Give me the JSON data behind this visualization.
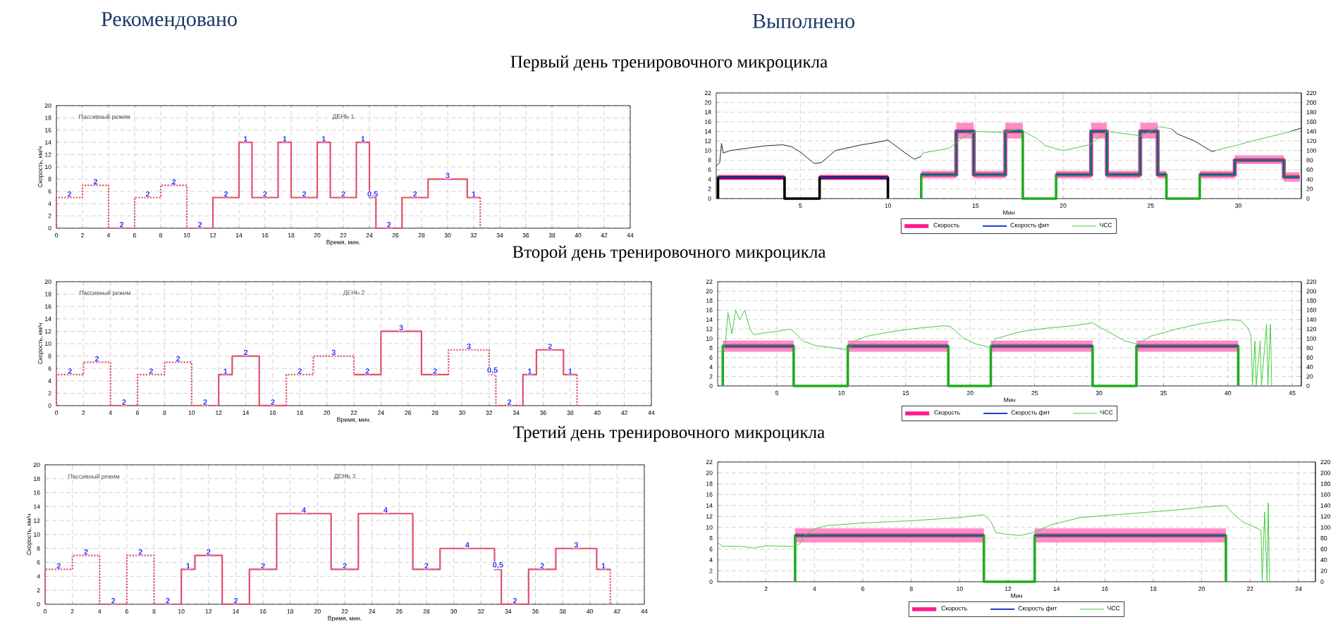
{
  "chart_data": [
    {
      "type": "line",
      "title": "Первый день тренировочного микроцикла",
      "subtitle": "Рекомендовано",
      "xlabel": "Время, мин.",
      "ylabel": "Скорость, км/ч",
      "xlim": [
        0,
        44
      ],
      "ylim": [
        0,
        20
      ],
      "xticks": [
        0,
        2,
        4,
        6,
        8,
        10,
        12,
        14,
        16,
        18,
        20,
        22,
        24,
        26,
        28,
        30,
        32,
        34,
        36,
        38,
        40,
        42,
        44
      ],
      "yticks": [
        0,
        2,
        4,
        6,
        8,
        10,
        12,
        14,
        16,
        18,
        20
      ],
      "grid": true,
      "annotations": [
        "Пассивный режим",
        "ДЕНЬ 1",
        {
          "text": "2",
          "x": 1,
          "y": 5
        },
        {
          "text": "2",
          "x": 3,
          "y": 7
        },
        {
          "text": "2",
          "x": 5,
          "y": 0
        },
        {
          "text": "2",
          "x": 7,
          "y": 5
        },
        {
          "text": "2",
          "x": 9,
          "y": 7
        },
        {
          "text": "2",
          "x": 11,
          "y": 0
        },
        {
          "text": "2",
          "x": 13,
          "y": 5
        },
        {
          "text": "1",
          "x": 14.5,
          "y": 14
        },
        {
          "text": "2",
          "x": 16,
          "y": 5
        },
        {
          "text": "1",
          "x": 17.5,
          "y": 14
        },
        {
          "text": "2",
          "x": 19,
          "y": 5
        },
        {
          "text": "1",
          "x": 20.5,
          "y": 14
        },
        {
          "text": "2",
          "x": 22,
          "y": 5
        },
        {
          "text": "1",
          "x": 23.5,
          "y": 14
        },
        {
          "text": "0.5",
          "x": 24.25,
          "y": 5
        },
        {
          "text": "2",
          "x": 25.5,
          "y": 0
        },
        {
          "text": "2",
          "x": 27.5,
          "y": 5
        },
        {
          "text": "3",
          "x": 30,
          "y": 8
        },
        {
          "text": "1",
          "x": 32,
          "y": 5
        }
      ],
      "series": [
        {
          "color": "#e0506a",
          "line_style": "dotted",
          "x": [
            0,
            0,
            2,
            2,
            4,
            4,
            6,
            6,
            8,
            8,
            10,
            10,
            12
          ],
          "values": [
            0,
            5,
            5,
            7,
            7,
            0,
            0,
            5,
            5,
            7,
            7,
            0,
            0
          ]
        },
        {
          "color": "#e0506a",
          "line_style": "solid",
          "x": [
            12,
            12,
            14,
            14,
            15,
            15,
            17,
            17,
            18,
            18,
            20,
            20,
            21,
            21,
            23,
            23,
            24,
            24,
            24.5,
            24.5,
            26.5,
            26.5,
            28.5,
            28.5,
            31.5,
            31.5,
            32.5
          ],
          "values": [
            0,
            5,
            5,
            14,
            14,
            5,
            5,
            14,
            14,
            5,
            5,
            14,
            14,
            5,
            5,
            14,
            14,
            5,
            5,
            0,
            0,
            5,
            5,
            8,
            8,
            5,
            5
          ]
        },
        {
          "color": "#e0506a",
          "line_style": "dotted",
          "x": [
            32.5,
            32.5
          ],
          "values": [
            5,
            0
          ]
        }
      ]
    },
    {
      "type": "line",
      "subtitle": "Выполнено",
      "xlabel": "Мин",
      "xlim": [
        0.2,
        33.6
      ],
      "ylim": [
        0,
        22
      ],
      "y2lim": [
        0,
        220
      ],
      "xticks": [
        5,
        10,
        15,
        20,
        25,
        30
      ],
      "yticks": [
        0,
        2,
        4,
        6,
        8,
        10,
        12,
        14,
        16,
        18,
        20,
        22
      ],
      "y2ticks": [
        0,
        20,
        40,
        60,
        80,
        100,
        120,
        140,
        160,
        180,
        200,
        220
      ],
      "grid": true,
      "legend": "bottom",
      "series": [
        {
          "name": "Скорость",
          "color": "#ff1a8c",
          "x": [
            0.3,
            4.1
          ],
          "values": [
            4.4,
            4.4
          ],
          "lower": [
            3.8,
            3.8
          ],
          "upper": [
            5,
            5
          ]
        },
        {
          "color": "#ff1a8c",
          "x": [
            6.1,
            10
          ],
          "values": [
            4.4,
            4.4
          ],
          "lower": [
            3.8,
            3.8
          ],
          "upper": [
            5,
            5
          ]
        },
        {
          "color": "#ff1a8c",
          "x": [
            11.9,
            13.9,
            13.9,
            14.9,
            14.9,
            16.7,
            16.7,
            17.7
          ],
          "values": [
            5,
            5,
            14,
            14,
            5,
            5,
            14,
            14
          ],
          "lower": [
            4.2,
            4.2,
            12.5,
            12.5,
            4.2,
            4.2,
            12.5,
            12.5
          ],
          "upper": [
            5.8,
            5.8,
            15.8,
            15.8,
            5.8,
            5.8,
            15.8,
            15.8
          ]
        },
        {
          "color": "#ff1a8c",
          "x": [
            19.6,
            21.6,
            21.6,
            22.5,
            22.5,
            24.4,
            24.4,
            25.4,
            25.4,
            25.9
          ],
          "values": [
            5,
            5,
            14,
            14,
            5,
            5,
            14,
            14,
            5,
            5
          ],
          "lower": [
            4.2,
            4.2,
            12.5,
            12.5,
            4.2,
            4.2,
            12.5,
            12.5,
            4.2,
            4.2
          ],
          "upper": [
            5.8,
            5.8,
            15.8,
            15.8,
            5.8,
            5.8,
            15.8,
            15.8,
            5.8,
            5.8
          ]
        },
        {
          "color": "#ff1a8c",
          "x": [
            27.8,
            29.8,
            29.8,
            32.6,
            32.6,
            33.5
          ],
          "values": [
            5,
            5,
            8,
            8,
            4.5,
            4.5
          ],
          "lower": [
            4.2,
            4.2,
            7.2,
            7.2,
            3.5,
            3.5
          ],
          "upper": [
            5.8,
            5.8,
            9,
            9,
            5.5,
            5.5
          ]
        },
        {
          "color": "#000000",
          "x": [
            0.3,
            0.3,
            4.1,
            4.1,
            6.1,
            6.1,
            10,
            10
          ],
          "values": [
            0,
            4.4,
            4.4,
            0,
            0,
            4.4,
            4.4,
            0
          ]
        },
        {
          "color": "#22aa22",
          "x": [
            11.9,
            11.9,
            13.9,
            13.9,
            14.9,
            14.9,
            16.7,
            16.7,
            17.7,
            17.7,
            19.6,
            19.6,
            21.6,
            21.6,
            22.5,
            22.5,
            24.4,
            24.4,
            25.4,
            25.4,
            25.9,
            25.9,
            27.8,
            27.8,
            29.8,
            29.8,
            32.6,
            32.6,
            33.5
          ],
          "values": [
            0,
            5,
            5,
            14,
            14,
            5,
            5,
            14,
            14,
            0,
            0,
            5,
            5,
            14,
            14,
            5,
            5,
            14,
            14,
            5,
            5,
            0,
            0,
            5,
            5,
            8,
            8,
            4.5,
            4.5
          ]
        },
        {
          "name": "Скорость фит",
          "color": "#2040d0",
          "x": [
            0.3,
            4.1
          ],
          "values": [
            4.4,
            4.4
          ]
        },
        {
          "color": "#2040d0",
          "x": [
            6.1,
            10
          ],
          "values": [
            4.4,
            4.4
          ]
        },
        {
          "color": "#2040d0",
          "x": [
            11.9,
            13.9,
            13.9,
            14.9,
            14.9,
            16.7,
            16.7,
            17.7
          ],
          "values": [
            5,
            5,
            14,
            14,
            5,
            5,
            14,
            14
          ]
        },
        {
          "color": "#2040d0",
          "x": [
            19.6,
            21.6,
            21.6,
            22.5,
            22.5,
            24.4,
            24.4,
            25.4,
            25.4,
            25.9
          ],
          "values": [
            5,
            5,
            14,
            14,
            5,
            5,
            14,
            14,
            5,
            5
          ]
        },
        {
          "color": "#2040d0",
          "x": [
            27.8,
            29.8,
            29.8,
            32.6,
            32.6,
            33.5
          ],
          "values": [
            5,
            5,
            8,
            8,
            4.5,
            4.5
          ]
        },
        {
          "name": "ЧСС",
          "color": "#44cc44",
          "axis": "y2",
          "x": [
            11.9,
            12,
            13.5,
            14.2,
            15,
            16.5,
            17.5,
            18.5,
            19,
            20,
            21.5,
            22.5,
            24,
            24.4,
            25.5,
            26.2
          ],
          "values": [
            88,
            95,
            105,
            125,
            140,
            138,
            145,
            125,
            110,
            100,
            112,
            140,
            133,
            130,
            150,
            145
          ]
        },
        {
          "color": "#44cc44",
          "axis": "y2",
          "x": [
            28.7,
            30,
            31,
            32.5,
            33
          ],
          "values": [
            100,
            112,
            122,
            135,
            140
          ]
        },
        {
          "color": "#222222",
          "axis": "y2",
          "x": [
            0.2,
            0.4,
            0.5,
            0.6,
            1,
            2,
            3,
            4,
            4.5,
            5,
            5.8,
            6.2,
            7,
            8.5,
            9.5,
            10,
            10.8,
            11.5,
            11.9
          ],
          "values": [
            68,
            75,
            115,
            95,
            100,
            105,
            110,
            112,
            108,
            97,
            73,
            75,
            100,
            112,
            118,
            122,
            100,
            82,
            88
          ]
        },
        {
          "color": "#222222",
          "axis": "y2",
          "x": [
            26.2,
            26.5,
            27.5,
            28.5,
            28.7
          ],
          "values": [
            145,
            135,
            120,
            98,
            100
          ]
        },
        {
          "color": "#222222",
          "axis": "y2",
          "x": [
            33,
            33.6
          ],
          "values": [
            140,
            147
          ]
        }
      ]
    },
    {
      "type": "line",
      "title": "Второй день тренировочного микроцикла",
      "xlabel": "Время, мин.",
      "ylabel": "Скорость, км/ч",
      "xlim": [
        0,
        44
      ],
      "ylim": [
        0,
        20
      ],
      "xticks": [
        0,
        2,
        4,
        6,
        8,
        10,
        12,
        14,
        16,
        18,
        20,
        22,
        24,
        26,
        28,
        30,
        32,
        34,
        36,
        38,
        40,
        42,
        44
      ],
      "yticks": [
        0,
        2,
        4,
        6,
        8,
        10,
        12,
        14,
        16,
        18,
        20
      ],
      "grid": true,
      "annotations": [
        "Пассивный режим",
        "ДЕНЬ 2",
        {
          "text": "2",
          "x": 1,
          "y": 5
        },
        {
          "text": "2",
          "x": 3,
          "y": 7
        },
        {
          "text": "2",
          "x": 5,
          "y": 0
        },
        {
          "text": "2",
          "x": 7,
          "y": 5
        },
        {
          "text": "2",
          "x": 9,
          "y": 7
        },
        {
          "text": "2",
          "x": 11,
          "y": 0
        },
        {
          "text": "1",
          "x": 12.5,
          "y": 5
        },
        {
          "text": "2",
          "x": 14,
          "y": 8
        },
        {
          "text": "2",
          "x": 16,
          "y": 0
        },
        {
          "text": "2",
          "x": 18,
          "y": 5
        },
        {
          "text": "3",
          "x": 20.5,
          "y": 8
        },
        {
          "text": "2",
          "x": 23,
          "y": 5
        },
        {
          "text": "3",
          "x": 25.5,
          "y": 12
        },
        {
          "text": "2",
          "x": 28,
          "y": 5
        },
        {
          "text": "3",
          "x": 30.5,
          "y": 9
        },
        {
          "text": "0,5",
          "x": 32.25,
          "y": 5
        },
        {
          "text": "2",
          "x": 33.5,
          "y": 0
        },
        {
          "text": "1",
          "x": 35,
          "y": 5
        },
        {
          "text": "2",
          "x": 36.5,
          "y": 9
        },
        {
          "text": "1",
          "x": 38,
          "y": 5
        }
      ],
      "series": [
        {
          "color": "#e0506a",
          "line_style": "dotted",
          "x": [
            0,
            0,
            2,
            2,
            4,
            4,
            6,
            6,
            8,
            8,
            10,
            10,
            12
          ],
          "values": [
            0,
            5,
            5,
            7,
            7,
            0,
            0,
            5,
            5,
            7,
            7,
            0,
            0
          ]
        },
        {
          "color": "#e0506a",
          "line_style": "solid",
          "x": [
            12,
            12,
            13,
            13,
            15,
            15,
            17
          ],
          "values": [
            0,
            5,
            5,
            8,
            8,
            0,
            0
          ]
        },
        {
          "color": "#e0506a",
          "line_style": "dotted",
          "x": [
            17,
            17,
            19,
            19,
            22,
            22
          ],
          "values": [
            0,
            5,
            5,
            8,
            8,
            5
          ]
        },
        {
          "color": "#e0506a",
          "line_style": "solid",
          "x": [
            22,
            24,
            24,
            27,
            27,
            29
          ],
          "values": [
            5,
            5,
            12,
            12,
            5,
            5
          ]
        },
        {
          "color": "#e0506a",
          "line_style": "dotted",
          "x": [
            29,
            29,
            32,
            32,
            32.5,
            32.5,
            34.5
          ],
          "values": [
            5,
            9,
            9,
            5,
            5,
            0,
            0
          ]
        },
        {
          "color": "#e0506a",
          "line_style": "solid",
          "x": [
            34.5,
            34.5,
            35.5,
            35.5,
            37.5,
            37.5,
            38.5
          ],
          "values": [
            0,
            5,
            5,
            9,
            9,
            5,
            5
          ]
        },
        {
          "color": "#e0506a",
          "line_style": "dotted",
          "x": [
            38.5,
            38.5
          ],
          "values": [
            5,
            0
          ]
        }
      ]
    },
    {
      "type": "line",
      "xlabel": "Мин",
      "xlim": [
        0.4,
        45.7
      ],
      "ylim": [
        0,
        22
      ],
      "y2lim": [
        0,
        220
      ],
      "xticks": [
        5,
        10,
        15,
        20,
        25,
        30,
        35,
        40,
        45
      ],
      "yticks": [
        0,
        2,
        4,
        6,
        8,
        10,
        12,
        14,
        16,
        18,
        20,
        22
      ],
      "y2ticks": [
        0,
        20,
        40,
        60,
        80,
        100,
        120,
        140,
        160,
        180,
        200,
        220
      ],
      "grid": true,
      "legend": "bottom",
      "series": [
        {
          "name": "Скорость",
          "color": "#ff1a8c",
          "x": [
            0.8,
            6.3
          ],
          "values": [
            8.4,
            8.4
          ],
          "lower": [
            7.2,
            7.2
          ],
          "upper": [
            9.6,
            9.6
          ]
        },
        {
          "color": "#ff1a8c",
          "x": [
            10.5,
            18.3
          ],
          "values": [
            8.4,
            8.4
          ],
          "lower": [
            7.2,
            7.2
          ],
          "upper": [
            9.6,
            9.6
          ]
        },
        {
          "color": "#ff1a8c",
          "x": [
            21.6,
            29.5
          ],
          "values": [
            8.4,
            8.4
          ],
          "lower": [
            7.2,
            7.2
          ],
          "upper": [
            9.6,
            9.6
          ]
        },
        {
          "color": "#ff1a8c",
          "x": [
            32.9,
            40.8
          ],
          "values": [
            8.4,
            8.4
          ],
          "lower": [
            7.2,
            7.2
          ],
          "upper": [
            9.6,
            9.6
          ]
        },
        {
          "color": "#22aa22",
          "x": [
            0.8,
            0.8,
            6.3,
            6.3,
            10.5,
            10.5,
            18.3,
            18.3,
            21.6,
            21.6,
            29.5,
            29.5,
            32.9,
            32.9,
            40.8,
            40.8
          ],
          "values": [
            0,
            8.4,
            8.4,
            0,
            0,
            8.4,
            8.4,
            0,
            0,
            8.4,
            8.4,
            0,
            0,
            8.4,
            8.4,
            0
          ]
        },
        {
          "name": "Скорость фит",
          "color": "#2040d0",
          "x": [
            0.8,
            6.3
          ],
          "values": [
            8.4,
            8.4
          ]
        },
        {
          "color": "#2040d0",
          "x": [
            10.5,
            18.3
          ],
          "values": [
            8.4,
            8.4
          ]
        },
        {
          "color": "#2040d0",
          "x": [
            21.6,
            29.5
          ],
          "values": [
            8.4,
            8.4
          ]
        },
        {
          "color": "#2040d0",
          "x": [
            32.9,
            40.8
          ],
          "values": [
            8.4,
            8.4
          ]
        },
        {
          "name": "ЧСС",
          "color": "#44cc44",
          "axis": "y2",
          "x": [
            0.4,
            0.8,
            1,
            1.2,
            1.5,
            1.8,
            2.1,
            2.5,
            2.8,
            3,
            3.2,
            4,
            5,
            6,
            6.3,
            7,
            8,
            9,
            10,
            10.5,
            11,
            12,
            14,
            16,
            18,
            18.5,
            19.5,
            20.5,
            21.5,
            22,
            24,
            26,
            28,
            29.5,
            30,
            31,
            32,
            33,
            34,
            36,
            38,
            40,
            41,
            41.6,
            41.8,
            41.9,
            42.1,
            42.2,
            42.5,
            42.6,
            43,
            43.1,
            43.3,
            43.4
          ],
          "values": [
            72,
            75,
            90,
            155,
            110,
            160,
            140,
            160,
            130,
            115,
            108,
            112,
            115,
            120,
            115,
            95,
            85,
            82,
            78,
            76,
            95,
            105,
            115,
            122,
            127,
            125,
            100,
            88,
            82,
            100,
            115,
            122,
            127,
            133,
            125,
            110,
            95,
            88,
            105,
            120,
            132,
            140,
            138,
            120,
            105,
            0,
            95,
            0,
            95,
            0,
            130,
            0,
            130,
            0
          ]
        }
      ]
    },
    {
      "type": "line",
      "title": "Третий день тренировочного микроцикла",
      "xlabel": "Время, мин.",
      "ylabel": "Скорость, км/ч",
      "xlim": [
        0,
        44
      ],
      "ylim": [
        0,
        20
      ],
      "xticks": [
        0,
        2,
        4,
        6,
        8,
        10,
        12,
        14,
        16,
        18,
        20,
        22,
        24,
        26,
        28,
        30,
        32,
        34,
        36,
        38,
        40,
        42,
        44
      ],
      "yticks": [
        0,
        2,
        4,
        6,
        8,
        10,
        12,
        14,
        16,
        18,
        20
      ],
      "grid": true,
      "annotations": [
        "Пассивный режим",
        "ДЕНЬ 3",
        {
          "text": "2",
          "x": 1,
          "y": 5
        },
        {
          "text": "2",
          "x": 3,
          "y": 7
        },
        {
          "text": "2",
          "x": 5,
          "y": 0
        },
        {
          "text": "2",
          "x": 7,
          "y": 7
        },
        {
          "text": "2",
          "x": 9,
          "y": 0
        },
        {
          "text": "1",
          "x": 10.5,
          "y": 5
        },
        {
          "text": "2",
          "x": 12,
          "y": 7
        },
        {
          "text": "2",
          "x": 14,
          "y": 0
        },
        {
          "text": "2",
          "x": 16,
          "y": 5
        },
        {
          "text": "4",
          "x": 19,
          "y": 13
        },
        {
          "text": "2",
          "x": 22,
          "y": 5
        },
        {
          "text": "4",
          "x": 25,
          "y": 13
        },
        {
          "text": "2",
          "x": 28,
          "y": 5
        },
        {
          "text": "4",
          "x": 31,
          "y": 8
        },
        {
          "text": "0,5",
          "x": 33.25,
          "y": 5
        },
        {
          "text": "2",
          "x": 34.5,
          "y": 0
        },
        {
          "text": "2",
          "x": 36.5,
          "y": 5
        },
        {
          "text": "3",
          "x": 39,
          "y": 8
        },
        {
          "text": "1",
          "x": 41,
          "y": 5
        }
      ],
      "series": [
        {
          "color": "#e0506a",
          "line_style": "dotted",
          "x": [
            0,
            0,
            2,
            2,
            4,
            4,
            6,
            6,
            8,
            8,
            10
          ],
          "values": [
            0,
            5,
            5,
            7,
            7,
            0,
            0,
            7,
            7,
            0,
            0
          ]
        },
        {
          "color": "#e0506a",
          "line_style": "solid",
          "x": [
            10,
            10,
            11,
            11,
            13,
            13,
            15,
            15,
            17,
            17,
            21,
            21,
            23,
            23,
            27,
            27,
            29,
            29,
            33,
            33,
            33.5,
            33.5,
            35.5,
            35.5,
            37.5,
            37.5,
            40.5,
            40.5,
            41.5
          ],
          "values": [
            0,
            5,
            5,
            7,
            7,
            0,
            0,
            5,
            5,
            13,
            13,
            5,
            5,
            13,
            13,
            5,
            5,
            8,
            8,
            5,
            5,
            0,
            0,
            5,
            5,
            8,
            8,
            5,
            5
          ]
        },
        {
          "color": "#e0506a",
          "line_style": "dotted",
          "x": [
            41.5,
            41.5
          ],
          "values": [
            5,
            0
          ]
        }
      ]
    },
    {
      "type": "line",
      "xlabel": "Мин",
      "xlim": [
        0,
        24.7
      ],
      "ylim": [
        0,
        22
      ],
      "y2lim": [
        0,
        220
      ],
      "xticks": [
        2,
        4,
        6,
        8,
        10,
        12,
        14,
        16,
        18,
        20,
        22,
        24
      ],
      "yticks": [
        0,
        2,
        4,
        6,
        8,
        10,
        12,
        14,
        16,
        18,
        20,
        22
      ],
      "y2ticks": [
        0,
        20,
        40,
        60,
        80,
        100,
        120,
        140,
        160,
        180,
        200,
        220
      ],
      "grid": true,
      "legend": "bottom",
      "series": [
        {
          "name": "Скорость",
          "color": "#ff1a8c",
          "x": [
            3.2,
            11
          ],
          "values": [
            8.5,
            8.5
          ],
          "lower": [
            7.2,
            7.2
          ],
          "upper": [
            9.8,
            9.8
          ]
        },
        {
          "color": "#ff1a8c",
          "x": [
            13.1,
            21
          ],
          "values": [
            8.5,
            8.5
          ],
          "lower": [
            7.2,
            7.2
          ],
          "upper": [
            9.8,
            9.8
          ]
        },
        {
          "color": "#22aa22",
          "x": [
            3.2,
            3.2,
            11,
            11,
            13.1,
            13.1,
            21,
            21
          ],
          "values": [
            0,
            8.5,
            8.5,
            0,
            0,
            8.5,
            8.5,
            0
          ]
        },
        {
          "name": "Скорость фит",
          "color": "#2040d0",
          "x": [
            3.2,
            11
          ],
          "values": [
            8.5,
            8.5
          ]
        },
        {
          "color": "#2040d0",
          "x": [
            13.1,
            21
          ],
          "values": [
            8.5,
            8.5
          ]
        },
        {
          "name": "ЧСС",
          "color": "#44cc44",
          "axis": "y2",
          "x": [
            0,
            0.2,
            1,
            1.5,
            2,
            3,
            3.2,
            3.4,
            3.6,
            4,
            4.5,
            6,
            8,
            10,
            11,
            11.3,
            11.5,
            12,
            12.5,
            13,
            13.3,
            13.8,
            15,
            17,
            19,
            20,
            21,
            21.3,
            21.7,
            22.2,
            22.45,
            22.5,
            22.6,
            22.7,
            22.75,
            22.8
          ],
          "values": [
            72,
            65,
            65,
            62,
            66,
            65,
            64,
            70,
            85,
            97,
            103,
            108,
            112,
            118,
            123,
            110,
            90,
            87,
            85,
            90,
            95,
            105,
            118,
            125,
            132,
            137,
            140,
            125,
            110,
            100,
            95,
            0,
            128,
            0,
            145,
            0
          ]
        }
      ]
    }
  ]
}
